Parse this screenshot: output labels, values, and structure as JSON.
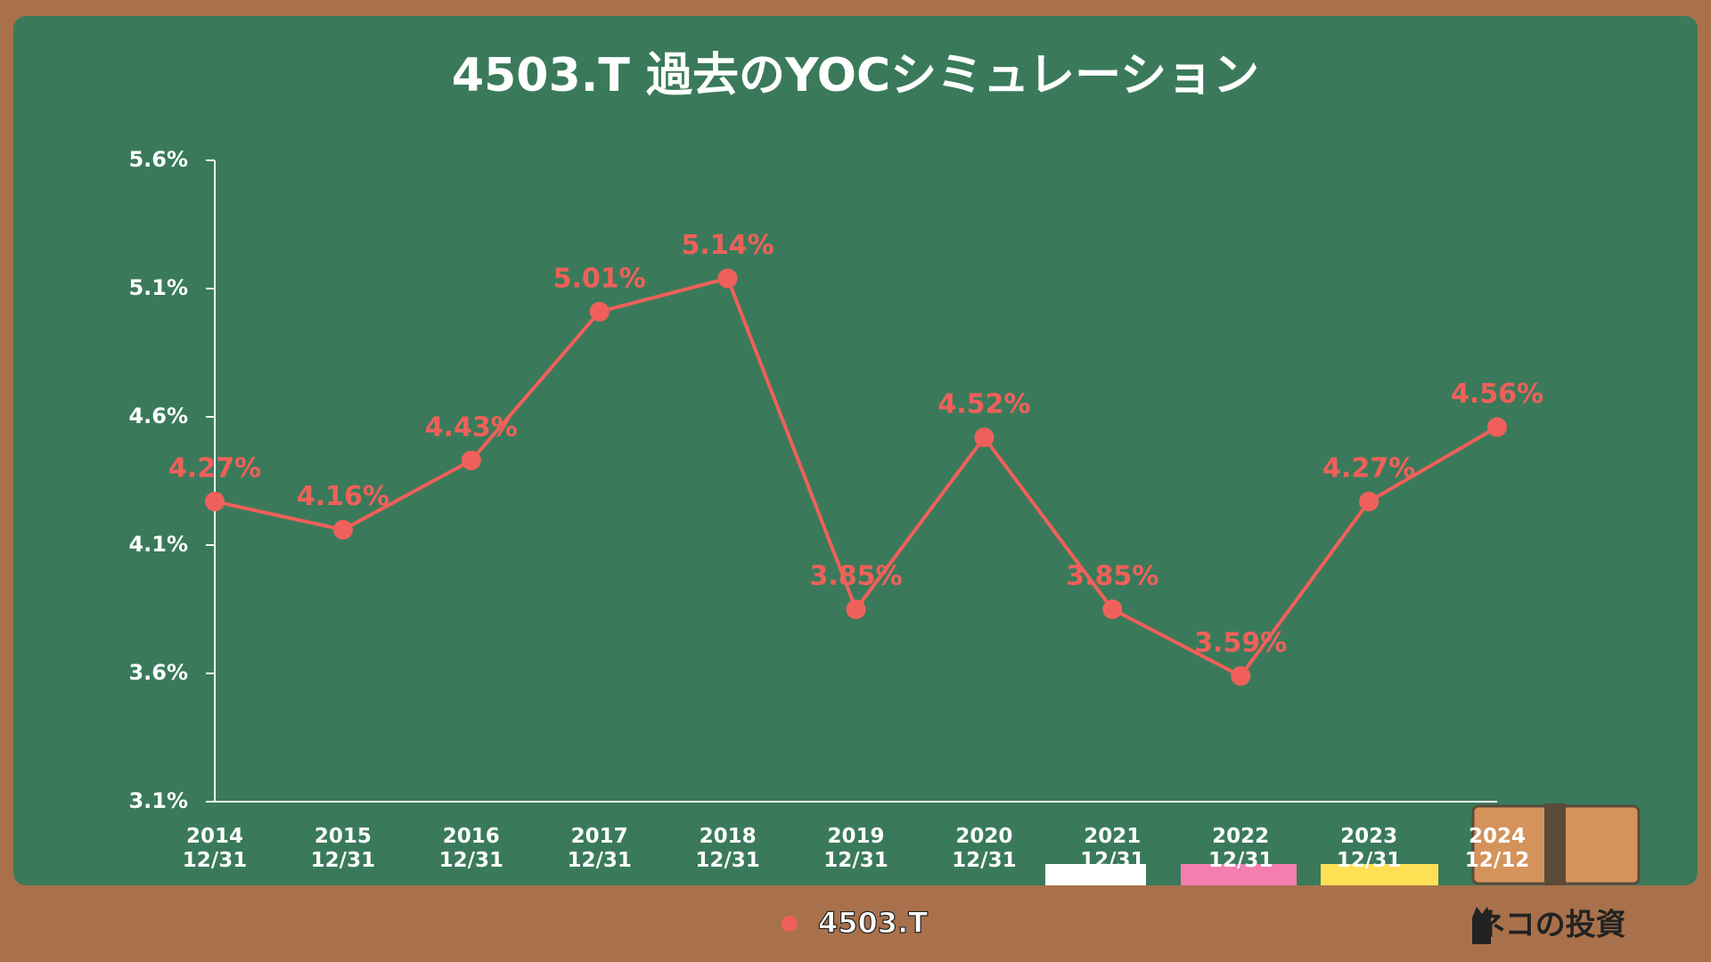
{
  "chart_data": {
    "type": "line",
    "title": "4503.T 過去のYOCシミュレーション",
    "categories": [
      "2014\n12/31",
      "2015\n12/31",
      "2016\n12/31",
      "2017\n12/31",
      "2018\n12/31",
      "2019\n12/31",
      "2020\n12/31",
      "2021\n12/31",
      "2022\n12/31",
      "2023\n12/31",
      "2024\n12/12"
    ],
    "series": [
      {
        "name": "4503.T",
        "color": "#f0605a",
        "values": [
          4.27,
          4.16,
          4.43,
          5.01,
          5.14,
          3.85,
          4.52,
          3.85,
          3.59,
          4.27,
          4.56
        ],
        "value_labels": [
          "4.27%",
          "4.16%",
          "4.43%",
          "5.01%",
          "5.14%",
          "3.85%",
          "4.52%",
          "3.85%",
          "3.59%",
          "4.27%",
          "4.56%"
        ]
      }
    ],
    "ylim": [
      3.1,
      5.6
    ],
    "yticks": [
      {
        "value": 3.1,
        "label": "3.1%"
      },
      {
        "value": 3.6,
        "label": "3.6%"
      },
      {
        "value": 4.1,
        "label": "4.1%"
      },
      {
        "value": 4.6,
        "label": "4.6%"
      },
      {
        "value": 5.1,
        "label": "5.1%"
      },
      {
        "value": 5.6,
        "label": "5.6%"
      }
    ],
    "brand": "ネコの投資"
  }
}
